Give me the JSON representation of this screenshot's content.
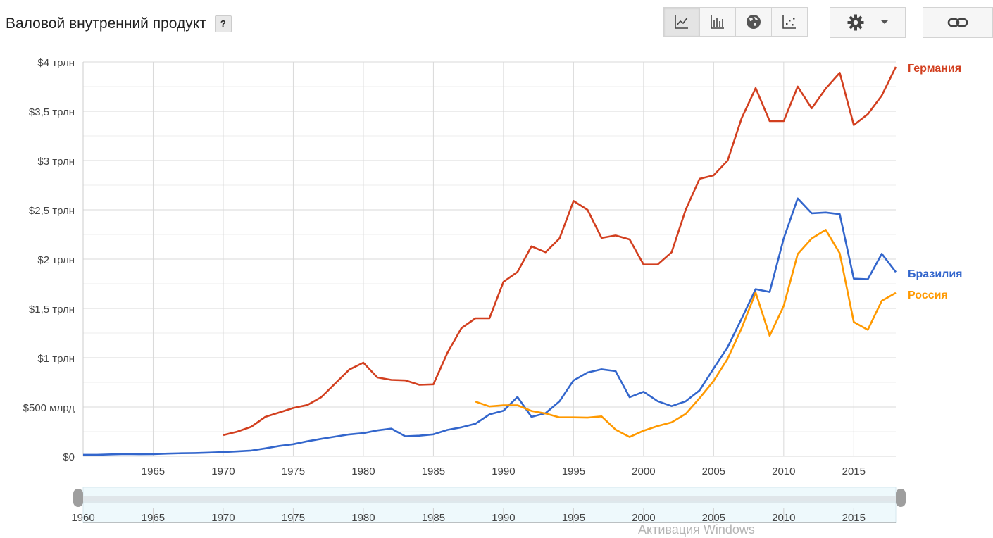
{
  "title": "Валовой внутренний продукт",
  "help_label": "?",
  "toolbar": {
    "buttons": [
      {
        "name": "line-chart-icon",
        "active": true
      },
      {
        "name": "bar-chart-icon",
        "active": false
      },
      {
        "name": "globe-map-icon",
        "active": false
      },
      {
        "name": "scatter-chart-icon",
        "active": false
      }
    ],
    "settings_icon": "gear-icon",
    "link_icon": "link-icon"
  },
  "watermark": "Активация Windows",
  "chart_data": {
    "type": "line",
    "xlim": [
      1960,
      2018
    ],
    "ylim": [
      0,
      4000
    ],
    "x_ticks": [
      1965,
      1970,
      1975,
      1980,
      1985,
      1990,
      1995,
      2000,
      2005,
      2010,
      2015
    ],
    "x_tick_labels": [
      "1965",
      "1970",
      "1975",
      "1980",
      "1985",
      "1990",
      "1995",
      "2000",
      "2005",
      "2010",
      "2015"
    ],
    "y_ticks": [
      0,
      500,
      1000,
      1500,
      2000,
      2500,
      3000,
      3500,
      4000
    ],
    "y_tick_labels": [
      "$0",
      "$500 млрд",
      "$1 трлн",
      "$1,5 трлн",
      "$2 трлн",
      "$2,5 трлн",
      "$3 трлн",
      "$3,5 трлн",
      "$4 трлн"
    ],
    "y_minor_ticks": [
      250,
      750,
      1250,
      1750,
      2250,
      2750,
      3250,
      3750
    ],
    "grid": true,
    "legend": "right-end-labels",
    "series": [
      {
        "name": "Германия",
        "color": "#d23f1f",
        "x": [
          1970,
          1971,
          1972,
          1973,
          1974,
          1975,
          1976,
          1977,
          1978,
          1979,
          1980,
          1981,
          1982,
          1983,
          1984,
          1985,
          1986,
          1987,
          1988,
          1989,
          1990,
          1991,
          1992,
          1993,
          1994,
          1995,
          1996,
          1997,
          1998,
          1999,
          2000,
          2001,
          2002,
          2003,
          2004,
          2005,
          2006,
          2007,
          2008,
          2009,
          2010,
          2011,
          2012,
          2013,
          2014,
          2015,
          2016,
          2017,
          2018
        ],
        "values": [
          215,
          250,
          300,
          400,
          445,
          490,
          520,
          600,
          740,
          880,
          950,
          800,
          775,
          770,
          725,
          730,
          1050,
          1300,
          1400,
          1400,
          1770,
          1870,
          2130,
          2070,
          2210,
          2590,
          2500,
          2215,
          2240,
          2200,
          1945,
          1945,
          2070,
          2500,
          2815,
          2850,
          3000,
          3430,
          3735,
          3400,
          3400,
          3750,
          3530,
          3730,
          3890,
          3360,
          3470,
          3660,
          3950
        ]
      },
      {
        "name": "Бразилия",
        "color": "#3366cc",
        "x": [
          1960,
          1961,
          1962,
          1963,
          1964,
          1965,
          1966,
          1967,
          1968,
          1969,
          1970,
          1971,
          1972,
          1973,
          1974,
          1975,
          1976,
          1977,
          1978,
          1979,
          1980,
          1981,
          1982,
          1983,
          1984,
          1985,
          1986,
          1987,
          1988,
          1989,
          1990,
          1991,
          1992,
          1993,
          1994,
          1995,
          1996,
          1997,
          1998,
          1999,
          2000,
          2001,
          2002,
          2003,
          2004,
          2005,
          2006,
          2007,
          2008,
          2009,
          2010,
          2011,
          2012,
          2013,
          2014,
          2015,
          2016,
          2017,
          2018
        ],
        "values": [
          15,
          15,
          19,
          23,
          21,
          22,
          27,
          31,
          33,
          37,
          42,
          49,
          58,
          80,
          105,
          123,
          152,
          177,
          200,
          222,
          235,
          263,
          281,
          203,
          209,
          223,
          268,
          294,
          330,
          425,
          462,
          602,
          400,
          437,
          558,
          770,
          850,
          883,
          864,
          599,
          655,
          559,
          509,
          558,
          669,
          891,
          1107,
          1397,
          1696,
          1667,
          2209,
          2616,
          2465,
          2473,
          2456,
          1802,
          1796,
          2054,
          1869
        ]
      },
      {
        "name": "Россия",
        "color": "#ff9900",
        "x": [
          1988,
          1989,
          1990,
          1991,
          1992,
          1993,
          1994,
          1995,
          1996,
          1997,
          1998,
          1999,
          2000,
          2001,
          2002,
          2003,
          2004,
          2005,
          2006,
          2007,
          2008,
          2009,
          2010,
          2011,
          2012,
          2013,
          2014,
          2015,
          2016,
          2017,
          2018
        ],
        "values": [
          555,
          506,
          517,
          518,
          460,
          435,
          395,
          395,
          392,
          405,
          271,
          196,
          260,
          307,
          345,
          430,
          591,
          764,
          990,
          1300,
          1661,
          1223,
          1525,
          2052,
          2210,
          2297,
          2059,
          1363,
          1283,
          1578,
          1658
        ]
      }
    ]
  },
  "range_slider": {
    "range": [
      1960,
      2018
    ],
    "tick_labels": [
      "1960",
      "1965",
      "1970",
      "1975",
      "1980",
      "1985",
      "1990",
      "1995",
      "2000",
      "2005",
      "2010",
      "2015"
    ],
    "ticks": [
      1960,
      1965,
      1970,
      1975,
      1980,
      1985,
      1990,
      1995,
      2000,
      2005,
      2010,
      2015
    ]
  }
}
